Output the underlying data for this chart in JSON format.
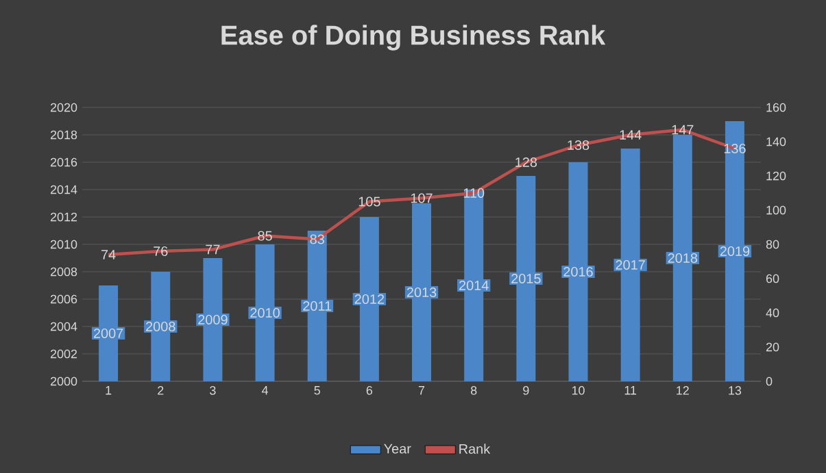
{
  "chart_data": {
    "type": "bar",
    "title": "Ease of Doing Business Rank",
    "categories": [
      "1",
      "2",
      "3",
      "4",
      "5",
      "6",
      "7",
      "8",
      "9",
      "10",
      "11",
      "12",
      "13"
    ],
    "series": [
      {
        "name": "Year",
        "color": "#4a86c8",
        "values": [
          2007,
          2008,
          2009,
          2010,
          2011,
          2012,
          2013,
          2014,
          2015,
          2016,
          2017,
          2018,
          2019
        ]
      },
      {
        "name": "Rank",
        "type": "line",
        "axis": "y2",
        "color": "#c0504d",
        "values": [
          74,
          76,
          77,
          85,
          83,
          105,
          107,
          110,
          128,
          138,
          144,
          147,
          136
        ]
      }
    ],
    "ylim": [
      2000,
      2020
    ],
    "yticks": [
      2000,
      2002,
      2004,
      2006,
      2008,
      2010,
      2012,
      2014,
      2016,
      2018,
      2020
    ],
    "y2lim": [
      0,
      160
    ],
    "y2ticks": [
      0,
      20,
      40,
      60,
      80,
      100,
      120,
      140,
      160
    ],
    "grid": "y",
    "legend": "bottom",
    "data_labels": true
  }
}
